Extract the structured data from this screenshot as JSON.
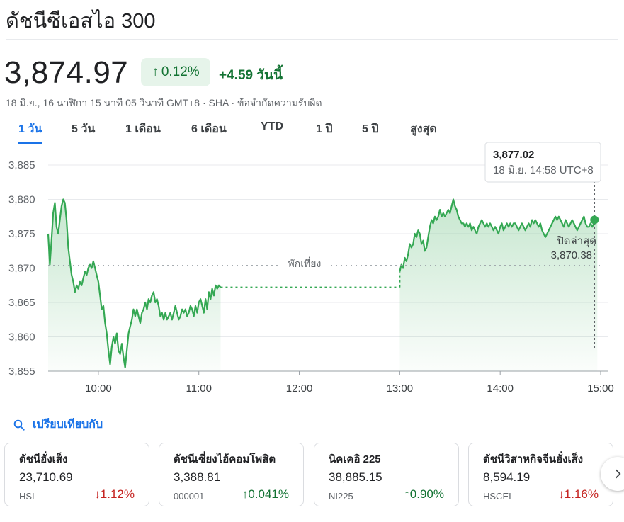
{
  "header": {
    "title": "ดัชนีซีเอสไอ 300",
    "price": "3,874.97",
    "change_percent": "0.12%",
    "change_abs": "+4.59 วันนี้",
    "meta": "18 มิ.ย., 16 นาฬิกา 15 นาที 05 วินาที GMT+8 · SHA · ข้อจำกัดความรับผิด"
  },
  "tabs": [
    {
      "label": "1 วัน",
      "active": true
    },
    {
      "label": "5 วัน"
    },
    {
      "label": "1 เดือน"
    },
    {
      "label": "6 เดือน"
    },
    {
      "label": "YTD"
    },
    {
      "label": "1 ปี"
    },
    {
      "label": "5 ปี"
    },
    {
      "label": "สูงสุด"
    }
  ],
  "colors": {
    "accent": "#1a73e8",
    "up": "#137333",
    "down": "#c5221f",
    "line": "#34a853"
  },
  "icons": {
    "compare": "search-icon",
    "next": "chevron-right-icon"
  },
  "chart_data": {
    "type": "line",
    "ylim": [
      3855,
      3885
    ],
    "y_ticks": [
      "3,885",
      "3,880",
      "3,875",
      "3,870",
      "3,865",
      "3,860",
      "3,855"
    ],
    "y_tick_values": [
      3885,
      3880,
      3875,
      3870,
      3865,
      3860,
      3855
    ],
    "x_ticks": [
      "10:00",
      "11:00",
      "12:00",
      "13:00",
      "14:00",
      "15:00"
    ],
    "x_tick_values": [
      600,
      660,
      720,
      780,
      840,
      900
    ],
    "xlim": [
      570,
      900
    ],
    "previous_close": 3870.38,
    "previous_close_label": "ปิดล่าสุด",
    "previous_close_value_label": "3,870.38",
    "lunch_label": "พักเที่ยง",
    "tooltip": {
      "value": "3,877.02",
      "time": "18 มิ.ย. 14:58 UTC+8",
      "x": 898,
      "y": 3877.02
    },
    "morning": [
      [
        570,
        3875.0
      ],
      [
        571,
        3870.5
      ],
      [
        572,
        3874.0
      ],
      [
        573,
        3878.0
      ],
      [
        574,
        3879.5
      ],
      [
        575,
        3876.0
      ],
      [
        576,
        3875.0
      ],
      [
        577,
        3877.0
      ],
      [
        578,
        3879.0
      ],
      [
        579,
        3880.0
      ],
      [
        580,
        3879.5
      ],
      [
        581,
        3877.0
      ],
      [
        582,
        3873.0
      ],
      [
        583,
        3871.0
      ],
      [
        584,
        3869.0
      ],
      [
        585,
        3868.0
      ],
      [
        586,
        3866.5
      ],
      [
        587,
        3867.5
      ],
      [
        588,
        3867.0
      ],
      [
        589,
        3868.0
      ],
      [
        590,
        3867.5
      ],
      [
        591,
        3868.5
      ],
      [
        592,
        3869.5
      ],
      [
        593,
        3869.0
      ],
      [
        594,
        3870.0
      ],
      [
        595,
        3870.5
      ],
      [
        596,
        3870.0
      ],
      [
        597,
        3871.0
      ],
      [
        598,
        3870.0
      ],
      [
        599,
        3869.0
      ],
      [
        600,
        3868.0
      ],
      [
        601,
        3866.0
      ],
      [
        602,
        3864.0
      ],
      [
        603,
        3864.5
      ],
      [
        604,
        3862.0
      ],
      [
        605,
        3860.5
      ],
      [
        606,
        3858.0
      ],
      [
        607,
        3856.0
      ],
      [
        608,
        3858.5
      ],
      [
        609,
        3860.0
      ],
      [
        610,
        3859.0
      ],
      [
        611,
        3860.5
      ],
      [
        612,
        3858.0
      ],
      [
        613,
        3857.5
      ],
      [
        614,
        3859.0
      ],
      [
        615,
        3857.0
      ],
      [
        616,
        3855.5
      ],
      [
        617,
        3858.0
      ],
      [
        618,
        3860.5
      ],
      [
        619,
        3861.5
      ],
      [
        620,
        3862.5
      ],
      [
        621,
        3864.0
      ],
      [
        622,
        3863.0
      ],
      [
        623,
        3864.0
      ],
      [
        624,
        3863.0
      ],
      [
        625,
        3862.0
      ],
      [
        626,
        3863.5
      ],
      [
        627,
        3864.0
      ],
      [
        628,
        3865.0
      ],
      [
        629,
        3864.0
      ],
      [
        630,
        3865.5
      ],
      [
        631,
        3865.0
      ],
      [
        632,
        3866.0
      ],
      [
        633,
        3866.5
      ],
      [
        634,
        3865.0
      ],
      [
        635,
        3865.5
      ],
      [
        636,
        3864.5
      ],
      [
        637,
        3863.0
      ],
      [
        638,
        3863.5
      ],
      [
        639,
        3862.5
      ],
      [
        640,
        3863.5
      ],
      [
        641,
        3862.5
      ],
      [
        642,
        3863.0
      ],
      [
        643,
        3863.5
      ],
      [
        644,
        3862.5
      ],
      [
        645,
        3863.5
      ],
      [
        646,
        3864.5
      ],
      [
        647,
        3863.5
      ],
      [
        648,
        3862.5
      ],
      [
        649,
        3863.0
      ],
      [
        650,
        3864.0
      ],
      [
        651,
        3863.5
      ],
      [
        652,
        3864.0
      ],
      [
        653,
        3863.0
      ],
      [
        654,
        3863.5
      ],
      [
        655,
        3864.5
      ],
      [
        656,
        3864.0
      ],
      [
        657,
        3863.0
      ],
      [
        658,
        3864.5
      ],
      [
        659,
        3863.5
      ],
      [
        660,
        3865.0
      ],
      [
        661,
        3865.5
      ],
      [
        662,
        3864.5
      ],
      [
        663,
        3863.5
      ],
      [
        664,
        3865.5
      ],
      [
        665,
        3864.0
      ],
      [
        666,
        3866.5
      ],
      [
        667,
        3865.5
      ],
      [
        668,
        3867.0
      ],
      [
        669,
        3866.0
      ],
      [
        670,
        3867.5
      ],
      [
        671,
        3867.0
      ],
      [
        672,
        3867.5
      ],
      [
        673,
        3867.2
      ]
    ],
    "afternoon": [
      [
        780,
        3869.5
      ],
      [
        781,
        3870.5
      ],
      [
        782,
        3870.0
      ],
      [
        783,
        3871.5
      ],
      [
        784,
        3871.0
      ],
      [
        785,
        3872.0
      ],
      [
        786,
        3873.5
      ],
      [
        787,
        3873.0
      ],
      [
        788,
        3873.5
      ],
      [
        789,
        3875.0
      ],
      [
        790,
        3874.5
      ],
      [
        791,
        3875.5
      ],
      [
        792,
        3875.0
      ],
      [
        793,
        3873.5
      ],
      [
        794,
        3874.0
      ],
      [
        795,
        3872.5
      ],
      [
        796,
        3873.0
      ],
      [
        797,
        3874.5
      ],
      [
        798,
        3876.0
      ],
      [
        799,
        3877.0
      ],
      [
        800,
        3876.5
      ],
      [
        801,
        3877.5
      ],
      [
        802,
        3877.0
      ],
      [
        803,
        3877.5
      ],
      [
        804,
        3878.5
      ],
      [
        805,
        3877.5
      ],
      [
        806,
        3878.0
      ],
      [
        807,
        3877.5
      ],
      [
        808,
        3878.0
      ],
      [
        809,
        3878.5
      ],
      [
        810,
        3878.0
      ],
      [
        811,
        3879.0
      ],
      [
        812,
        3880.0
      ],
      [
        813,
        3879.0
      ],
      [
        814,
        3878.5
      ],
      [
        815,
        3877.5
      ],
      [
        816,
        3877.0
      ],
      [
        817,
        3876.5
      ],
      [
        818,
        3876.5
      ],
      [
        819,
        3876.0
      ],
      [
        820,
        3876.5
      ],
      [
        821,
        3876.0
      ],
      [
        822,
        3876.5
      ],
      [
        823,
        3875.5
      ],
      [
        824,
        3876.0
      ],
      [
        825,
        3875.5
      ],
      [
        826,
        3875.0
      ],
      [
        827,
        3876.0
      ],
      [
        828,
        3876.5
      ],
      [
        829,
        3877.0
      ],
      [
        830,
        3876.5
      ],
      [
        831,
        3876.0
      ],
      [
        832,
        3876.5
      ],
      [
        833,
        3876.0
      ],
      [
        834,
        3876.5
      ],
      [
        835,
        3876.0
      ],
      [
        836,
        3875.5
      ],
      [
        837,
        3876.0
      ],
      [
        838,
        3875.5
      ],
      [
        839,
        3875.0
      ],
      [
        840,
        3876.0
      ],
      [
        841,
        3876.5
      ],
      [
        842,
        3875.5
      ],
      [
        843,
        3876.0
      ],
      [
        844,
        3876.5
      ],
      [
        845,
        3876.0
      ],
      [
        846,
        3876.5
      ],
      [
        847,
        3876.0
      ],
      [
        848,
        3876.5
      ],
      [
        849,
        3876.5
      ],
      [
        850,
        3876.0
      ],
      [
        851,
        3875.5
      ],
      [
        852,
        3876.0
      ],
      [
        853,
        3876.5
      ],
      [
        854,
        3876.0
      ],
      [
        855,
        3875.5
      ],
      [
        856,
        3876.0
      ],
      [
        857,
        3876.5
      ],
      [
        858,
        3876.0
      ],
      [
        859,
        3877.0
      ],
      [
        860,
        3876.5
      ],
      [
        861,
        3877.0
      ],
      [
        862,
        3876.5
      ],
      [
        863,
        3876.0
      ],
      [
        864,
        3876.5
      ],
      [
        865,
        3875.5
      ],
      [
        866,
        3875.0
      ],
      [
        867,
        3874.5
      ],
      [
        868,
        3875.0
      ],
      [
        869,
        3875.5
      ],
      [
        870,
        3876.0
      ],
      [
        871,
        3876.5
      ],
      [
        872,
        3877.0
      ],
      [
        873,
        3877.5
      ],
      [
        874,
        3877.0
      ],
      [
        875,
        3877.5
      ],
      [
        876,
        3877.0
      ],
      [
        877,
        3876.5
      ],
      [
        878,
        3876.0
      ],
      [
        879,
        3877.0
      ],
      [
        880,
        3876.5
      ],
      [
        881,
        3876.0
      ],
      [
        882,
        3876.5
      ],
      [
        883,
        3877.0
      ],
      [
        884,
        3876.5
      ],
      [
        885,
        3876.0
      ],
      [
        886,
        3875.5
      ],
      [
        887,
        3876.0
      ],
      [
        888,
        3876.5
      ],
      [
        889,
        3877.0
      ],
      [
        890,
        3877.5
      ],
      [
        891,
        3876.5
      ],
      [
        892,
        3876.0
      ],
      [
        893,
        3876.0
      ],
      [
        894,
        3876.5
      ],
      [
        895,
        3876.0
      ],
      [
        896,
        3876.5
      ],
      [
        897,
        3876.5
      ],
      [
        898,
        3877.02
      ]
    ]
  },
  "compare": {
    "label": "เปรียบเทียบกับ",
    "cards": [
      {
        "name": "ดัชนีฮั่งเส็ง",
        "value": "23,710.69",
        "symbol": "HSI",
        "change": "1.12%",
        "direction": "down"
      },
      {
        "name": "ดัชนีเซี่ยงไฮ้คอมโพสิต",
        "value": "3,388.81",
        "symbol": "000001",
        "change": "0.041%",
        "direction": "up"
      },
      {
        "name": "นิคเคอิ 225",
        "value": "38,885.15",
        "symbol": "NI225",
        "change": "0.90%",
        "direction": "up"
      },
      {
        "name": "ดัชนีวิสาหกิจจีนฮั่งเส็ง",
        "value": "8,594.19",
        "symbol": "HSCEI",
        "change": "1.16%",
        "direction": "down"
      }
    ]
  }
}
